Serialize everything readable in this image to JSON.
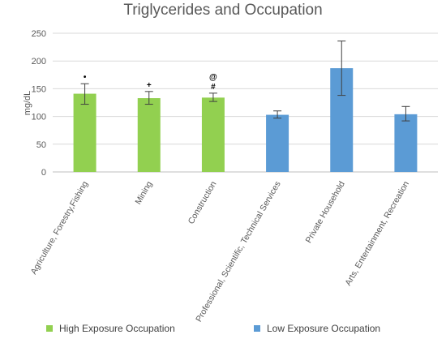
{
  "chart_data": {
    "type": "bar",
    "title": "Triglycerides and Occupation",
    "ylabel": "mg/dL",
    "xlabel": "",
    "ylim": [
      0,
      250
    ],
    "yticks": [
      0,
      50,
      100,
      150,
      200,
      250
    ],
    "grid": true,
    "legend_position": "bottom",
    "categories": [
      "Agriculture, Forestry,Fishing",
      "Mining",
      "Construction",
      "Professional, Scientific, Technical Services",
      "Private Household",
      "Arts, Entertainment, Recreation"
    ],
    "values": [
      141,
      133,
      134,
      103,
      187,
      104
    ],
    "error_low": [
      122,
      122,
      127,
      97,
      138,
      92
    ],
    "error_high": [
      159,
      145,
      142,
      110,
      236,
      118
    ],
    "groups": [
      "High Exposure Occupation",
      "High Exposure Occupation",
      "High Exposure Occupation",
      "Low Exposure Occupation",
      "Low Exposure Occupation",
      "Low Exposure Occupation"
    ],
    "annotations": [
      "•",
      "+",
      "@\n#",
      "",
      "",
      ""
    ],
    "legend": [
      {
        "name": "High Exposure Occupation",
        "color": "#92d050"
      },
      {
        "name": "Low Exposure Occupation",
        "color": "#5b9bd5"
      }
    ]
  }
}
